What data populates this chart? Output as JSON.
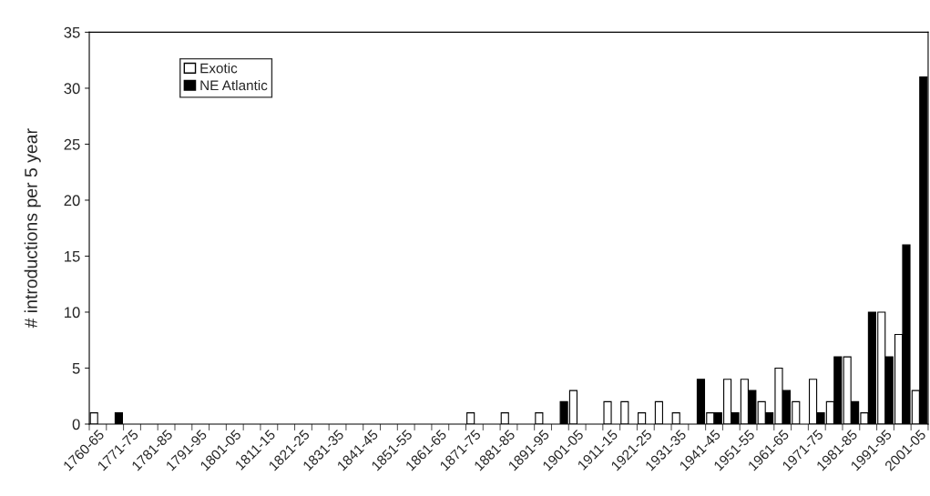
{
  "chart_data": {
    "type": "bar",
    "ylabel": "# introductions per 5 year",
    "categories": [
      "1760-65",
      null,
      "1771-75",
      null,
      "1781-85",
      null,
      "1791-95",
      null,
      "1801-05",
      null,
      "1811-15",
      null,
      "1821-25",
      null,
      "1831-35",
      null,
      "1841-45",
      null,
      "1851-55",
      null,
      "1861-65",
      null,
      "1871-75",
      null,
      "1881-85",
      null,
      "1891-95",
      null,
      "1901-05",
      null,
      "1911-15",
      null,
      "1921-25",
      null,
      "1931-35",
      null,
      "1941-45",
      null,
      "1951-55",
      null,
      "1961-65",
      null,
      "1971-75",
      null,
      "1981-85",
      null,
      "1991-95",
      null,
      "2001-05"
    ],
    "series": [
      {
        "name": "Exotic",
        "color": "#ffffff",
        "values": [
          1,
          0,
          0,
          0,
          0,
          0,
          0,
          0,
          0,
          0,
          0,
          0,
          0,
          0,
          0,
          0,
          0,
          0,
          0,
          0,
          0,
          0,
          1,
          0,
          1,
          0,
          1,
          0,
          3,
          0,
          2,
          2,
          1,
          2,
          1,
          0,
          1,
          4,
          4,
          2,
          5,
          2,
          4,
          2,
          6,
          1,
          10,
          8,
          3
        ]
      },
      {
        "name": "NE Atlantic",
        "color": "#000000",
        "values": [
          0,
          1,
          0,
          0,
          0,
          0,
          0,
          0,
          0,
          0,
          0,
          0,
          0,
          0,
          0,
          0,
          0,
          0,
          0,
          0,
          0,
          0,
          0,
          0,
          0,
          0,
          0,
          2,
          0,
          0,
          0,
          0,
          0,
          0,
          0,
          4,
          1,
          1,
          3,
          1,
          3,
          0,
          1,
          6,
          2,
          10,
          6,
          16,
          31
        ]
      }
    ],
    "ylim": [
      0,
      35
    ],
    "yticks": [
      0,
      5,
      10,
      15,
      20,
      25,
      30,
      35
    ],
    "grid": false,
    "legend": "top left"
  }
}
